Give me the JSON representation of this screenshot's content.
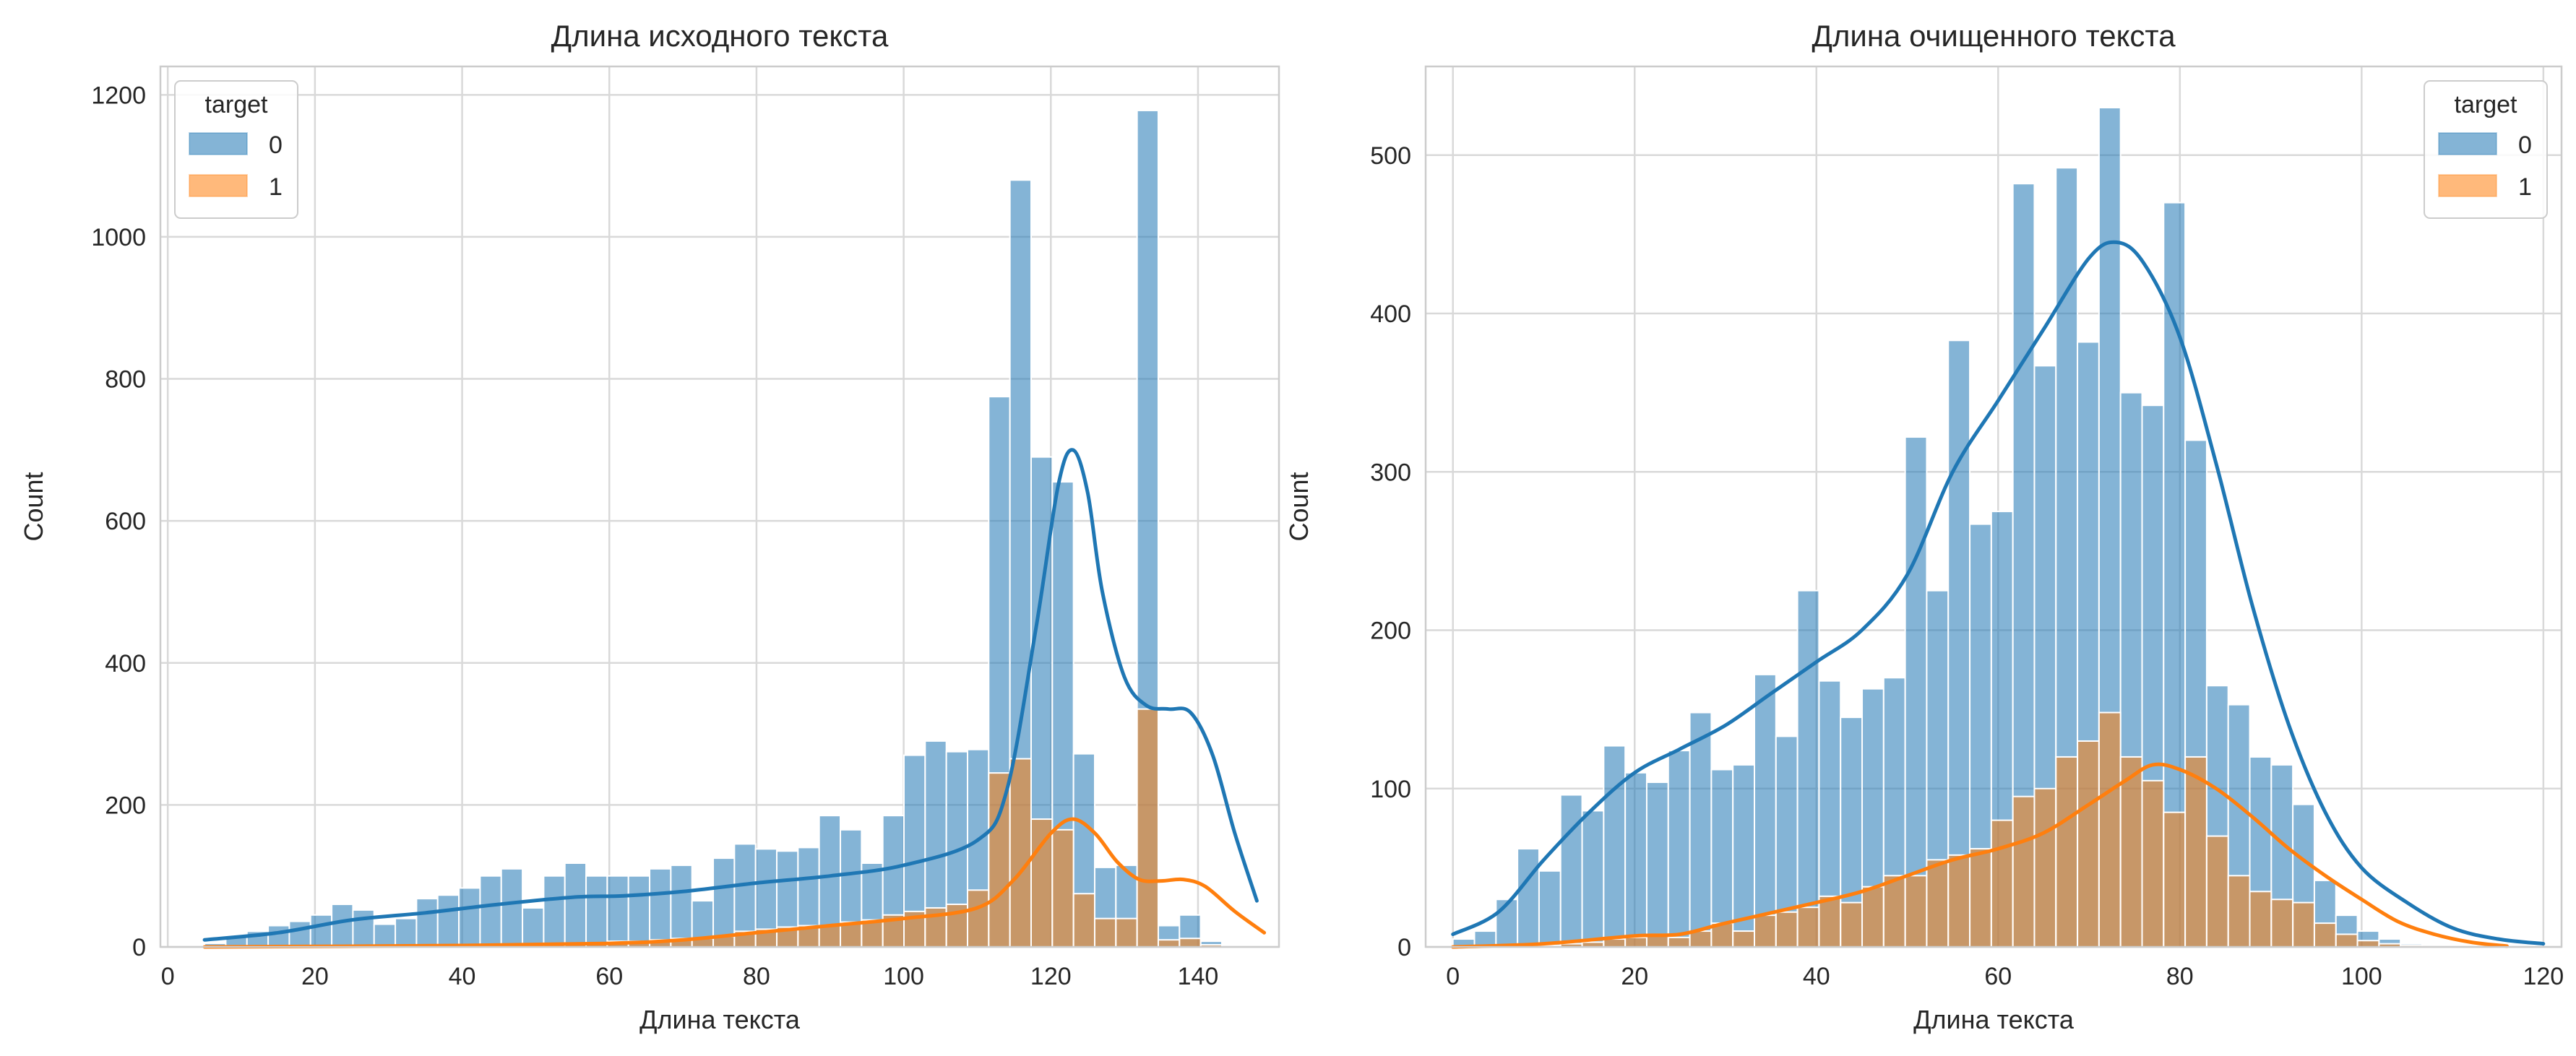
{
  "chart_data": [
    {
      "type": "bar",
      "subtype": "histogram-with-kde",
      "title": "Длина исходного текста",
      "xlabel": "Длина текста",
      "ylabel": "Count",
      "xlim": [
        -1,
        151
      ],
      "ylim": [
        0,
        1240
      ],
      "xticks": [
        0,
        20,
        40,
        60,
        80,
        100,
        120,
        140
      ],
      "yticks": [
        0,
        200,
        400,
        600,
        800,
        1000,
        1200
      ],
      "grid": true,
      "legend": {
        "title": "target",
        "position": "top-left"
      },
      "bin_start": 5,
      "bin_width": 2.88,
      "series": [
        {
          "name": "0",
          "color": "#1f77b4",
          "values": [
            5,
            15,
            22,
            30,
            36,
            45,
            60,
            52,
            32,
            40,
            68,
            73,
            83,
            100,
            110,
            55,
            100,
            118,
            100,
            100,
            100,
            110,
            115,
            65,
            125,
            145,
            138,
            135,
            140,
            185,
            165,
            118,
            185,
            270,
            290,
            275,
            278,
            775,
            1080,
            690,
            655,
            272,
            112,
            115,
            1178,
            30,
            45,
            8
          ],
          "kde": [
            [
              5,
              10
            ],
            [
              15,
              20
            ],
            [
              25,
              38
            ],
            [
              35,
              48
            ],
            [
              45,
              60
            ],
            [
              55,
              70
            ],
            [
              62,
              72
            ],
            [
              70,
              78
            ],
            [
              80,
              90
            ],
            [
              90,
              100
            ],
            [
              100,
              115
            ],
            [
              110,
              150
            ],
            [
              114,
              220
            ],
            [
              118,
              450
            ],
            [
              121,
              650
            ],
            [
              123,
              700
            ],
            [
              125,
              640
            ],
            [
              127,
              500
            ],
            [
              130,
              380
            ],
            [
              133,
              340
            ],
            [
              136,
              335
            ],
            [
              139,
              330
            ],
            [
              142,
              270
            ],
            [
              145,
              160
            ],
            [
              148,
              65
            ]
          ]
        },
        {
          "name": "1",
          "color": "#ff7f0e",
          "values": [
            0,
            1,
            1,
            1,
            1,
            1,
            2,
            2,
            2,
            2,
            2,
            3,
            3,
            3,
            4,
            4,
            5,
            5,
            6,
            8,
            8,
            10,
            12,
            12,
            15,
            22,
            25,
            28,
            30,
            30,
            35,
            38,
            45,
            50,
            55,
            60,
            80,
            245,
            265,
            180,
            165,
            75,
            40,
            40,
            335,
            10,
            12,
            3
          ],
          "kde": [
            [
              5,
              0
            ],
            [
              40,
              2
            ],
            [
              60,
              5
            ],
            [
              70,
              10
            ],
            [
              80,
              20
            ],
            [
              90,
              30
            ],
            [
              100,
              40
            ],
            [
              110,
              55
            ],
            [
              115,
              95
            ],
            [
              120,
              160
            ],
            [
              123,
              180
            ],
            [
              126,
              160
            ],
            [
              129,
              120
            ],
            [
              132,
              95
            ],
            [
              135,
              93
            ],
            [
              138,
              95
            ],
            [
              141,
              85
            ],
            [
              145,
              50
            ],
            [
              149,
              20
            ]
          ]
        }
      ]
    },
    {
      "type": "bar",
      "subtype": "histogram-with-kde",
      "title": "Длина очищенного текста",
      "xlabel": "Длина текста",
      "ylabel": "Count",
      "xlim": [
        -3,
        122
      ],
      "ylim": [
        0,
        556
      ],
      "xticks": [
        0,
        20,
        40,
        60,
        80,
        100,
        120
      ],
      "yticks": [
        0,
        100,
        200,
        300,
        400,
        500
      ],
      "grid": true,
      "legend": {
        "title": "target",
        "position": "top-right"
      },
      "bin_start": 0,
      "bin_width": 2.37,
      "series": [
        {
          "name": "0",
          "color": "#1f77b4",
          "values": [
            5,
            10,
            30,
            62,
            48,
            96,
            86,
            127,
            110,
            104,
            124,
            148,
            112,
            115,
            172,
            133,
            225,
            168,
            145,
            163,
            170,
            322,
            225,
            383,
            267,
            275,
            482,
            367,
            492,
            382,
            530,
            350,
            342,
            470,
            320,
            165,
            153,
            120,
            115,
            90,
            42,
            20,
            10,
            5,
            2
          ],
          "kde": [
            [
              0,
              8
            ],
            [
              5,
              22
            ],
            [
              10,
              55
            ],
            [
              15,
              85
            ],
            [
              20,
              110
            ],
            [
              25,
              125
            ],
            [
              30,
              140
            ],
            [
              35,
              160
            ],
            [
              40,
              180
            ],
            [
              45,
              200
            ],
            [
              50,
              235
            ],
            [
              55,
              300
            ],
            [
              60,
              345
            ],
            [
              65,
              390
            ],
            [
              70,
              435
            ],
            [
              73,
              445
            ],
            [
              76,
              432
            ],
            [
              80,
              385
            ],
            [
              84,
              305
            ],
            [
              88,
              215
            ],
            [
              92,
              140
            ],
            [
              96,
              85
            ],
            [
              100,
              50
            ],
            [
              105,
              28
            ],
            [
              110,
              12
            ],
            [
              115,
              5
            ],
            [
              120,
              2
            ]
          ]
        },
        {
          "name": "1",
          "color": "#ff7f0e",
          "values": [
            0,
            0,
            1,
            1,
            1,
            2,
            3,
            5,
            6,
            8,
            6,
            10,
            15,
            10,
            20,
            22,
            25,
            32,
            28,
            38,
            45,
            45,
            55,
            58,
            62,
            80,
            95,
            100,
            120,
            130,
            148,
            120,
            105,
            85,
            120,
            70,
            45,
            35,
            30,
            28,
            15,
            8,
            4,
            2,
            1
          ],
          "kde": [
            [
              0,
              0
            ],
            [
              10,
              2
            ],
            [
              20,
              7
            ],
            [
              25,
              8
            ],
            [
              30,
              15
            ],
            [
              40,
              28
            ],
            [
              45,
              35
            ],
            [
              50,
              45
            ],
            [
              55,
              55
            ],
            [
              60,
              62
            ],
            [
              65,
              72
            ],
            [
              70,
              90
            ],
            [
              74,
              105
            ],
            [
              77,
              115
            ],
            [
              80,
              112
            ],
            [
              84,
              100
            ],
            [
              88,
              82
            ],
            [
              92,
              62
            ],
            [
              96,
              45
            ],
            [
              100,
              30
            ],
            [
              104,
              16
            ],
            [
              108,
              8
            ],
            [
              112,
              3
            ],
            [
              116,
              0.5
            ]
          ]
        }
      ]
    }
  ]
}
